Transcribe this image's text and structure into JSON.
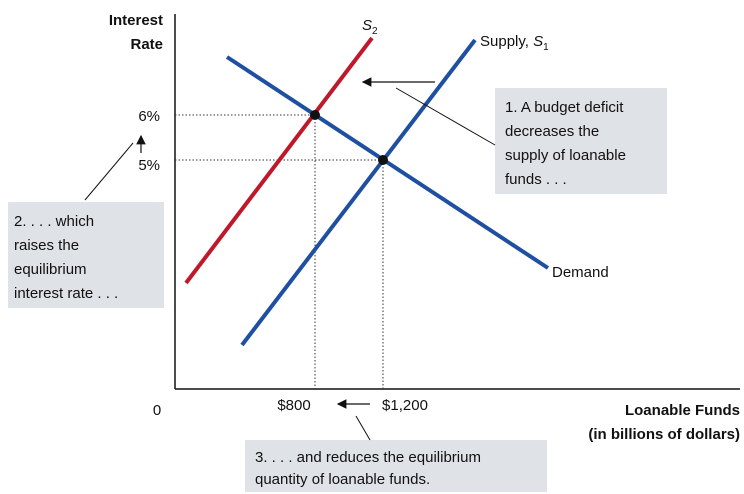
{
  "y_axis_label": [
    "Interest",
    "Rate"
  ],
  "x_axis_label": [
    "Loanable Funds",
    "(in billions of dollars)"
  ],
  "origin": "0",
  "y_ticks": [
    "6%",
    "5%"
  ],
  "x_ticks": [
    "$800",
    "$1,200"
  ],
  "s2_label": {
    "symbol": "S",
    "subscript": "2"
  },
  "s1_label": {
    "text": "Supply, ",
    "symbol": "S",
    "subscript": "1"
  },
  "demand_label": "Demand",
  "notes": [
    {
      "lines": [
        "1. A budget deficit",
        "decreases the",
        "supply of loanable",
        "funds . . ."
      ]
    },
    {
      "lines": [
        "2. . . . which",
        "raises the",
        "equilibrium",
        "interest rate . . ."
      ]
    },
    {
      "lines": [
        "3. . . . and reduces the equilibrium",
        "quantity of loanable funds."
      ]
    }
  ]
}
